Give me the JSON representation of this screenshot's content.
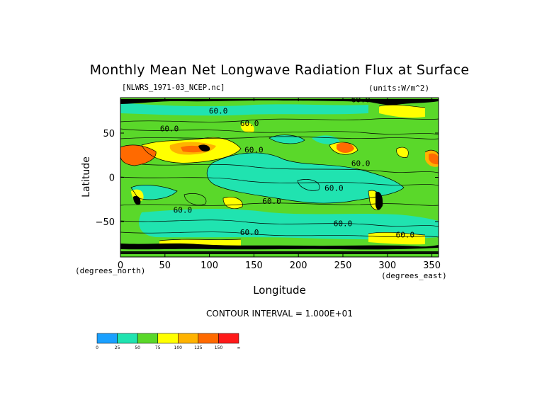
{
  "title": "Monthly Mean Net Longwave Radiation Flux at Surface",
  "subtitle_left": "[NLWRS_1971-03_NCEP.nc]",
  "subtitle_right": "(units:W/m^2)",
  "contour_interval_text": "CONTOUR INTERVAL = 1.000E+01",
  "chart_data": {
    "type": "heatmap",
    "title": "Monthly Mean Net Longwave Radiation Flux at Surface",
    "xlabel": "Longitude",
    "ylabel": "Latitude",
    "x_unit_label": "(degrees_east)",
    "y_unit_label": "(degrees_north)",
    "xlim": [
      0,
      357.5
    ],
    "ylim": [
      -90,
      90
    ],
    "x_ticks": [
      0,
      50,
      100,
      150,
      200,
      250,
      300,
      350
    ],
    "y_ticks": [
      50,
      0,
      -50
    ],
    "units": "W/m^2",
    "contour_interval": 10,
    "colorbar": {
      "levels": [
        "0",
        "25",
        "50",
        "75",
        "100",
        "125",
        "150",
        "∞"
      ],
      "colors": [
        "#1aa0ff",
        "#20e3b0",
        "#5ad82a",
        "#ffff00",
        "#ffb300",
        "#ff6a00",
        "#ff1a1a"
      ]
    },
    "contour_labels": [
      {
        "text": "60.0",
        "lon": 110,
        "lat": 72
      },
      {
        "text": "60.0",
        "lon": 55,
        "lat": 52
      },
      {
        "text": "60.0",
        "lon": 270,
        "lat": 85
      },
      {
        "text": "60.0",
        "lon": 145,
        "lat": 58
      },
      {
        "text": "60.0",
        "lon": 150,
        "lat": 28
      },
      {
        "text": "60.0",
        "lon": 270,
        "lat": 13
      },
      {
        "text": "60.0",
        "lon": 240,
        "lat": -15
      },
      {
        "text": "60.0",
        "lon": 70,
        "lat": -40
      },
      {
        "text": "60.0",
        "lon": 170,
        "lat": -30
      },
      {
        "text": "60.0",
        "lon": 250,
        "lat": -55
      },
      {
        "text": "60.0",
        "lon": 145,
        "lat": -65
      },
      {
        "text": "60.0",
        "lon": 320,
        "lat": -68
      }
    ],
    "grid": false
  }
}
